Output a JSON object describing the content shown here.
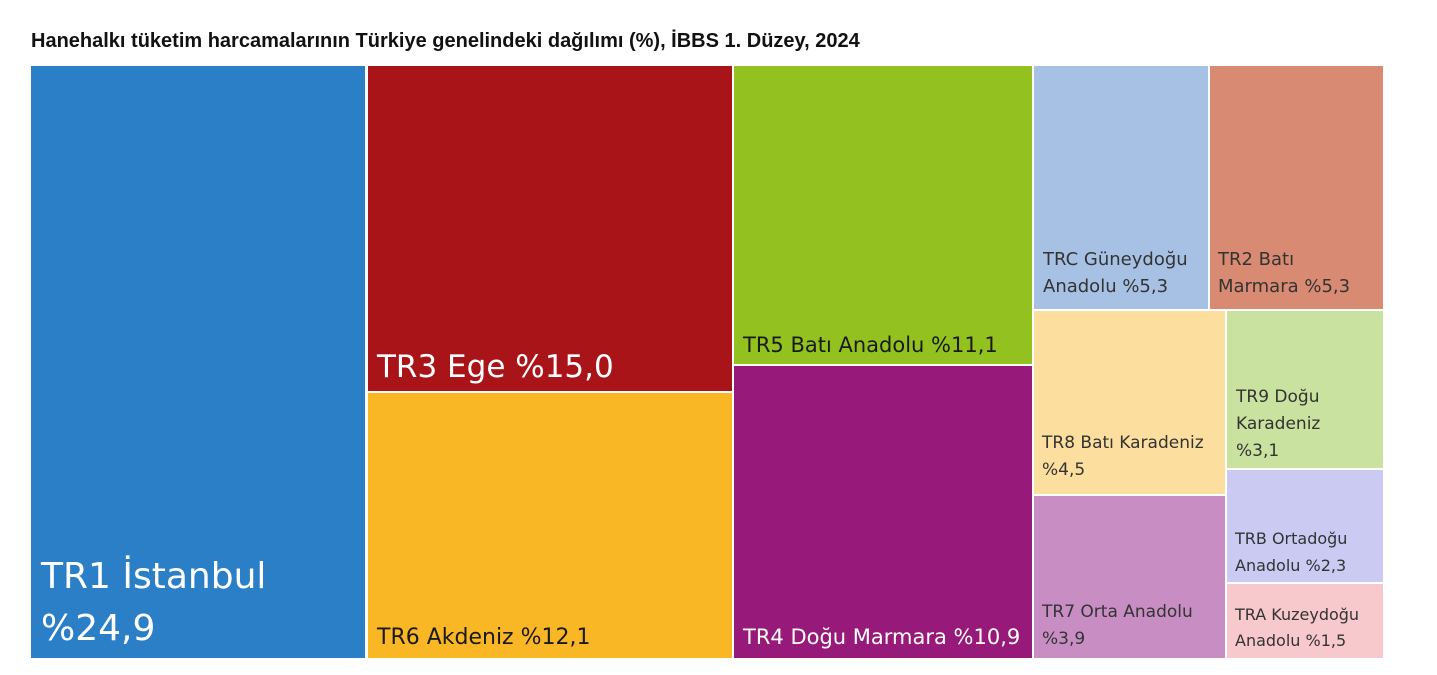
{
  "title": "Hanehalkı tüketim harcamalarının Türkiye genelindeki dağılımı (%), İBBS 1. Düzey, 2024",
  "chart_data": {
    "type": "treemap",
    "title": "Hanehalkı tüketim harcamalarının Türkiye genelindeki dağılımı (%), İBBS 1. Düzey, 2024",
    "unit": "%",
    "items": [
      {
        "code": "TR1",
        "name": "İstanbul",
        "value": 24.9,
        "label_lines": [
          "TR1 İstanbul",
          "%24,9"
        ],
        "color": "#2B7FC7"
      },
      {
        "code": "TR3",
        "name": "Ege",
        "value": 15.0,
        "label_lines": [
          "TR3 Ege %15,0"
        ],
        "color": "#A81418"
      },
      {
        "code": "TR6",
        "name": "Akdeniz",
        "value": 12.1,
        "label_lines": [
          "TR6 Akdeniz %12,1"
        ],
        "color": "#F9B625"
      },
      {
        "code": "TR5",
        "name": "Batı Anadolu",
        "value": 11.1,
        "label_lines": [
          "TR5 Batı Anadolu %11,1"
        ],
        "color": "#92C120"
      },
      {
        "code": "TR4",
        "name": "Doğu Marmara",
        "value": 10.9,
        "label_lines": [
          "TR4 Doğu Marmara %10,9"
        ],
        "color": "#97197A"
      },
      {
        "code": "TRC",
        "name": "Güneydoğu Anadolu",
        "value": 5.3,
        "label_lines": [
          "TRC Güneydoğu",
          "Anadolu %5,3"
        ],
        "color": "#A7C1E4"
      },
      {
        "code": "TR2",
        "name": "Batı Marmara",
        "value": 5.3,
        "label_lines": [
          "TR2 Batı",
          "Marmara %5,3"
        ],
        "color": "#D98A72"
      },
      {
        "code": "TR8",
        "name": "Batı Karadeniz",
        "value": 4.5,
        "label_lines": [
          "TR8 Batı Karadeniz",
          "%4,5"
        ],
        "color": "#FCDE9E"
      },
      {
        "code": "TR9",
        "name": "Doğu Karadeniz",
        "value": 3.1,
        "label_lines": [
          "TR9 Doğu",
          "Karadeniz",
          "%3,1"
        ],
        "color": "#C9E2A0"
      },
      {
        "code": "TR7",
        "name": "Orta Anadolu",
        "value": 3.9,
        "label_lines": [
          "TR7 Orta Anadolu",
          "%3,9"
        ],
        "color": "#C88EC4"
      },
      {
        "code": "TRB",
        "name": "Ortadoğu Anadolu",
        "value": 2.3,
        "label_lines": [
          "TRB Ortadoğu",
          "Anadolu %2,3"
        ],
        "color": "#CACAF3"
      },
      {
        "code": "TRA",
        "name": "Kuzeydoğu Anadolu",
        "value": 1.5,
        "label_lines": [
          "TRA Kuzeydoğu",
          "Anadolu %1,5"
        ],
        "color": "#F8C9CC"
      }
    ]
  }
}
